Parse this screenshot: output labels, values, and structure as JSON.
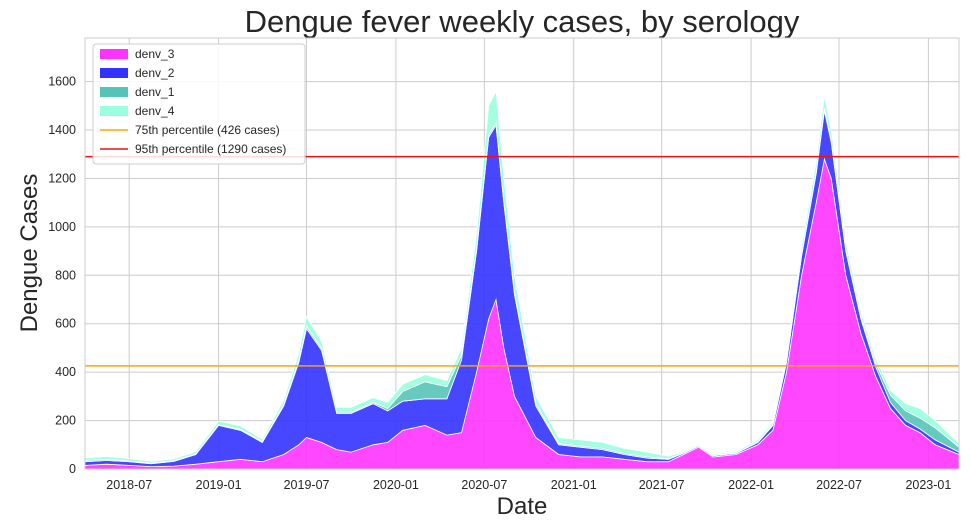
{
  "chart_data": {
    "type": "area",
    "stacked": true,
    "title": "Dengue fever weekly cases, by serology",
    "xlabel": "Date",
    "ylabel": "Dengue Cases",
    "x_range": [
      "2018-04-01",
      "2023-03-05"
    ],
    "ylim": [
      0,
      1780
    ],
    "grid": true,
    "legend_position": "top-left",
    "x_ticks": [
      "2018-07",
      "2019-01",
      "2019-07",
      "2020-01",
      "2020-07",
      "2021-01",
      "2021-07",
      "2022-01",
      "2022-07",
      "2023-01"
    ],
    "y_ticks": [
      0,
      200,
      400,
      600,
      800,
      1000,
      1200,
      1400,
      1600
    ],
    "series": [
      {
        "name": "denv_3",
        "color": "#ff33ff",
        "points": [
          [
            "2018-04-01",
            15
          ],
          [
            "2018-05-15",
            20
          ],
          [
            "2018-07-01",
            15
          ],
          [
            "2018-08-15",
            10
          ],
          [
            "2018-10-01",
            12
          ],
          [
            "2018-11-15",
            20
          ],
          [
            "2019-01-01",
            30
          ],
          [
            "2019-02-15",
            40
          ],
          [
            "2019-04-01",
            30
          ],
          [
            "2019-05-15",
            60
          ],
          [
            "2019-06-15",
            100
          ],
          [
            "2019-07-01",
            130
          ],
          [
            "2019-08-01",
            110
          ],
          [
            "2019-09-01",
            80
          ],
          [
            "2019-10-01",
            70
          ],
          [
            "2019-11-15",
            100
          ],
          [
            "2019-12-15",
            110
          ],
          [
            "2020-01-15",
            160
          ],
          [
            "2020-03-01",
            180
          ],
          [
            "2020-04-15",
            140
          ],
          [
            "2020-05-15",
            150
          ],
          [
            "2020-06-15",
            400
          ],
          [
            "2020-07-10",
            620
          ],
          [
            "2020-07-25",
            700
          ],
          [
            "2020-08-10",
            500
          ],
          [
            "2020-09-01",
            300
          ],
          [
            "2020-10-15",
            130
          ],
          [
            "2020-12-01",
            60
          ],
          [
            "2021-01-15",
            50
          ],
          [
            "2021-03-01",
            50
          ],
          [
            "2021-04-15",
            40
          ],
          [
            "2021-06-01",
            30
          ],
          [
            "2021-07-15",
            30
          ],
          [
            "2021-08-15",
            60
          ],
          [
            "2021-09-15",
            90
          ],
          [
            "2021-10-15",
            50
          ],
          [
            "2021-12-01",
            60
          ],
          [
            "2022-01-15",
            100
          ],
          [
            "2022-02-15",
            160
          ],
          [
            "2022-03-15",
            400
          ],
          [
            "2022-04-15",
            800
          ],
          [
            "2022-05-15",
            1100
          ],
          [
            "2022-06-01",
            1280
          ],
          [
            "2022-06-15",
            1200
          ],
          [
            "2022-07-15",
            800
          ],
          [
            "2022-08-15",
            560
          ],
          [
            "2022-09-15",
            380
          ],
          [
            "2022-10-15",
            250
          ],
          [
            "2022-11-15",
            180
          ],
          [
            "2022-12-15",
            150
          ],
          [
            "2023-01-15",
            100
          ],
          [
            "2023-03-05",
            60
          ]
        ]
      },
      {
        "name": "denv_2",
        "color": "#3333ff",
        "points": [
          [
            "2018-04-01",
            15
          ],
          [
            "2018-05-15",
            15
          ],
          [
            "2018-07-01",
            15
          ],
          [
            "2018-08-15",
            12
          ],
          [
            "2018-10-01",
            20
          ],
          [
            "2018-11-15",
            40
          ],
          [
            "2019-01-01",
            150
          ],
          [
            "2019-02-15",
            120
          ],
          [
            "2019-04-01",
            80
          ],
          [
            "2019-05-15",
            200
          ],
          [
            "2019-06-15",
            340
          ],
          [
            "2019-07-01",
            450
          ],
          [
            "2019-08-01",
            380
          ],
          [
            "2019-09-01",
            150
          ],
          [
            "2019-10-01",
            160
          ],
          [
            "2019-11-15",
            170
          ],
          [
            "2019-12-15",
            130
          ],
          [
            "2020-01-15",
            120
          ],
          [
            "2020-03-01",
            110
          ],
          [
            "2020-04-15",
            150
          ],
          [
            "2020-05-15",
            300
          ],
          [
            "2020-06-15",
            500
          ],
          [
            "2020-07-10",
            750
          ],
          [
            "2020-07-25",
            720
          ],
          [
            "2020-08-10",
            600
          ],
          [
            "2020-09-01",
            420
          ],
          [
            "2020-10-15",
            130
          ],
          [
            "2020-12-01",
            40
          ],
          [
            "2021-01-15",
            40
          ],
          [
            "2021-03-01",
            30
          ],
          [
            "2021-04-15",
            20
          ],
          [
            "2021-06-01",
            15
          ],
          [
            "2021-07-15",
            10
          ],
          [
            "2021-08-15",
            5
          ],
          [
            "2021-09-15",
            5
          ],
          [
            "2021-10-15",
            5
          ],
          [
            "2021-12-01",
            5
          ],
          [
            "2022-01-15",
            10
          ],
          [
            "2022-02-15",
            20
          ],
          [
            "2022-03-15",
            40
          ],
          [
            "2022-04-15",
            80
          ],
          [
            "2022-05-15",
            120
          ],
          [
            "2022-06-01",
            200
          ],
          [
            "2022-06-15",
            150
          ],
          [
            "2022-07-15",
            100
          ],
          [
            "2022-08-15",
            60
          ],
          [
            "2022-09-15",
            40
          ],
          [
            "2022-10-15",
            25
          ],
          [
            "2022-11-15",
            20
          ],
          [
            "2022-12-15",
            15
          ],
          [
            "2023-01-15",
            20
          ],
          [
            "2023-03-05",
            10
          ]
        ]
      },
      {
        "name": "denv_1",
        "color": "#55c4b8",
        "points": [
          [
            "2018-04-01",
            5
          ],
          [
            "2018-05-15",
            5
          ],
          [
            "2018-07-01",
            3
          ],
          [
            "2018-08-15",
            2
          ],
          [
            "2018-10-01",
            2
          ],
          [
            "2018-11-15",
            2
          ],
          [
            "2019-01-01",
            3
          ],
          [
            "2019-02-15",
            3
          ],
          [
            "2019-04-01",
            3
          ],
          [
            "2019-05-15",
            5
          ],
          [
            "2019-06-15",
            8
          ],
          [
            "2019-07-01",
            10
          ],
          [
            "2019-08-01",
            8
          ],
          [
            "2019-09-01",
            5
          ],
          [
            "2019-10-01",
            5
          ],
          [
            "2019-11-15",
            5
          ],
          [
            "2019-12-15",
            10
          ],
          [
            "2020-01-15",
            40
          ],
          [
            "2020-03-01",
            70
          ],
          [
            "2020-04-15",
            50
          ],
          [
            "2020-05-15",
            20
          ],
          [
            "2020-06-15",
            10
          ],
          [
            "2020-07-10",
            10
          ],
          [
            "2020-07-25",
            10
          ],
          [
            "2020-08-10",
            10
          ],
          [
            "2020-09-01",
            10
          ],
          [
            "2020-10-15",
            10
          ],
          [
            "2020-12-01",
            5
          ],
          [
            "2021-01-15",
            5
          ],
          [
            "2021-03-01",
            5
          ],
          [
            "2021-04-15",
            5
          ],
          [
            "2021-06-01",
            5
          ],
          [
            "2021-07-15",
            3
          ],
          [
            "2021-08-15",
            2
          ],
          [
            "2021-09-15",
            2
          ],
          [
            "2021-10-15",
            2
          ],
          [
            "2021-12-01",
            2
          ],
          [
            "2022-01-15",
            3
          ],
          [
            "2022-02-15",
            5
          ],
          [
            "2022-03-15",
            5
          ],
          [
            "2022-04-15",
            5
          ],
          [
            "2022-05-15",
            8
          ],
          [
            "2022-06-01",
            10
          ],
          [
            "2022-06-15",
            10
          ],
          [
            "2022-07-15",
            10
          ],
          [
            "2022-08-15",
            10
          ],
          [
            "2022-09-15",
            15
          ],
          [
            "2022-10-15",
            30
          ],
          [
            "2022-11-15",
            40
          ],
          [
            "2022-12-15",
            45
          ],
          [
            "2023-01-15",
            50
          ],
          [
            "2023-03-05",
            20
          ]
        ]
      },
      {
        "name": "denv_4",
        "color": "#99ffdd",
        "points": [
          [
            "2018-04-01",
            10
          ],
          [
            "2018-05-15",
            12
          ],
          [
            "2018-07-01",
            10
          ],
          [
            "2018-08-15",
            8
          ],
          [
            "2018-10-01",
            8
          ],
          [
            "2018-11-15",
            10
          ],
          [
            "2019-01-01",
            15
          ],
          [
            "2019-02-15",
            15
          ],
          [
            "2019-04-01",
            10
          ],
          [
            "2019-05-15",
            20
          ],
          [
            "2019-06-15",
            30
          ],
          [
            "2019-07-01",
            40
          ],
          [
            "2019-08-01",
            30
          ],
          [
            "2019-09-01",
            20
          ],
          [
            "2019-10-01",
            20
          ],
          [
            "2019-11-15",
            20
          ],
          [
            "2019-12-15",
            25
          ],
          [
            "2020-01-15",
            30
          ],
          [
            "2020-03-01",
            30
          ],
          [
            "2020-04-15",
            25
          ],
          [
            "2020-05-15",
            30
          ],
          [
            "2020-06-15",
            60
          ],
          [
            "2020-07-10",
            120
          ],
          [
            "2020-07-25",
            130
          ],
          [
            "2020-08-10",
            100
          ],
          [
            "2020-09-01",
            70
          ],
          [
            "2020-10-15",
            30
          ],
          [
            "2020-12-01",
            25
          ],
          [
            "2021-01-15",
            25
          ],
          [
            "2021-03-01",
            25
          ],
          [
            "2021-04-15",
            20
          ],
          [
            "2021-06-01",
            20
          ],
          [
            "2021-07-15",
            10
          ],
          [
            "2021-08-15",
            5
          ],
          [
            "2021-09-15",
            5
          ],
          [
            "2021-10-15",
            5
          ],
          [
            "2021-12-01",
            5
          ],
          [
            "2022-01-15",
            8
          ],
          [
            "2022-02-15",
            10
          ],
          [
            "2022-03-15",
            20
          ],
          [
            "2022-04-15",
            30
          ],
          [
            "2022-05-15",
            40
          ],
          [
            "2022-06-01",
            50
          ],
          [
            "2022-06-15",
            40
          ],
          [
            "2022-07-15",
            30
          ],
          [
            "2022-08-15",
            20
          ],
          [
            "2022-09-15",
            20
          ],
          [
            "2022-10-15",
            20
          ],
          [
            "2022-11-15",
            30
          ],
          [
            "2022-12-15",
            40
          ],
          [
            "2023-01-15",
            30
          ],
          [
            "2023-03-05",
            15
          ]
        ]
      }
    ],
    "reference_lines": [
      {
        "name": "75th percentile (426 cases)",
        "value": 426,
        "color": "#ffa500"
      },
      {
        "name": "95th percentile (1290 cases)",
        "value": 1290,
        "color": "#ee1111"
      }
    ]
  }
}
